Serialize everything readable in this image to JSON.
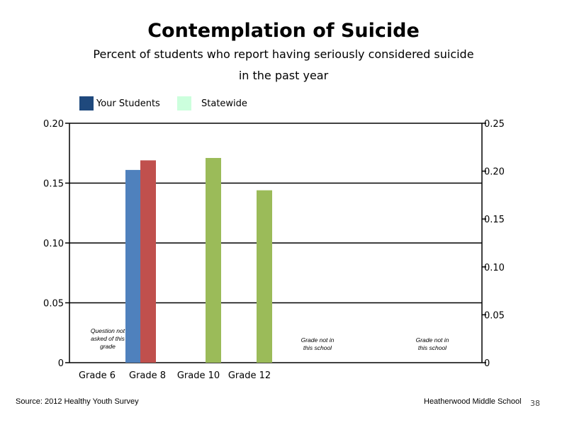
{
  "title": "Contemplation of Suicide",
  "subtitle_line1": "Percent of students who report having seriously considered suicide",
  "subtitle_line2": "in the past year",
  "legend": [
    {
      "label": "Your Students",
      "color": "#1F497D"
    },
    {
      "label": "Statewide",
      "color": "#CCFFDD"
    }
  ],
  "footer": {
    "source": "Source: 2012 Healthy Youth Survey",
    "school": "Heatherwood Middle  School",
    "page": "38"
  },
  "chart_data": {
    "type": "bar",
    "categories": [
      "Grade 6",
      "Grade 8",
      "Grade 10",
      "Grade 12"
    ],
    "ylim_left": [
      0,
      0.2
    ],
    "ylim_right": [
      0,
      0.25
    ],
    "yticks_left": [
      "0.20",
      "0.15",
      "0.10",
      "0.05",
      "0"
    ],
    "yticks_right": [
      "0.25",
      "0.20",
      "0.15",
      "0.10",
      "0.05",
      "0"
    ],
    "grid": true,
    "bars": [
      {
        "category": "Grade 8",
        "value": 0.161,
        "color": "#4F81BD"
      },
      {
        "category": "Grade 8",
        "value": 0.169,
        "color": "#C0504D"
      },
      {
        "category": "Grade 10",
        "value": 0.171,
        "color": "#9BBB59"
      },
      {
        "category": "Grade 12",
        "value": 0.144,
        "color": "#9BBB59"
      }
    ],
    "annotations": [
      {
        "lines": [
          "Question not",
          "asked of this",
          "grade"
        ]
      },
      {
        "lines": [
          "Grade not in",
          "this school"
        ]
      },
      {
        "lines": [
          "Grade not in",
          "this school"
        ]
      }
    ]
  }
}
